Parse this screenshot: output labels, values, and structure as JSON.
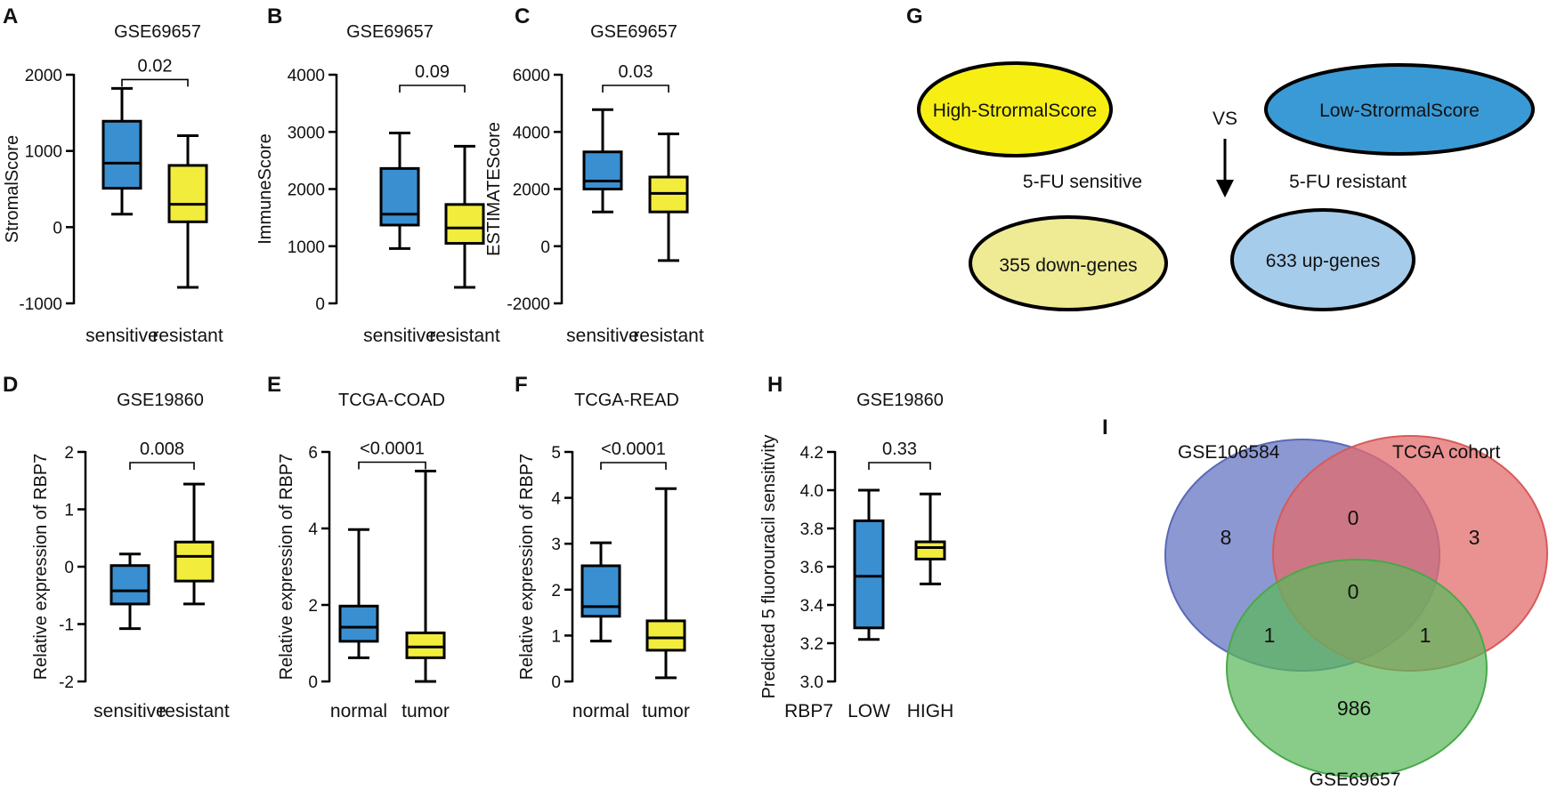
{
  "colors": {
    "sensitive_blue": "#3a8fd1",
    "resistant_yellow": "#f2ec3c",
    "high_yellow": "#f7ef14",
    "low_blue": "#3a9ad6",
    "down_light": "#efeb95",
    "up_light": "#a6ccec",
    "venn_blue": "#6676c2",
    "venn_red": "#e36c6c",
    "venn_green": "#5cb85c"
  },
  "chart_data": [
    {
      "panel": "A",
      "type": "box",
      "title": "GSE69657",
      "ylabel": "StromalScore",
      "ylim": [
        -1000,
        2000
      ],
      "yticks": [
        -1000,
        0,
        1000,
        2000
      ],
      "ytick_labels": [
        "-1000",
        "0",
        "1000",
        "2000"
      ],
      "categories": [
        "sensitive",
        "resistant"
      ],
      "boxes": [
        {
          "min": 170,
          "q1": 510,
          "median": 840,
          "q3": 1390,
          "max": 1820,
          "color": "#3a8fd1"
        },
        {
          "min": -790,
          "q1": 70,
          "median": 300,
          "q3": 810,
          "max": 1200,
          "color": "#f2ec3c"
        }
      ],
      "pvalue": "0.02"
    },
    {
      "panel": "B",
      "type": "box",
      "title": "GSE69657",
      "ylabel": "ImmuneScore",
      "ylim": [
        0,
        4000
      ],
      "yticks": [
        0,
        1000,
        2000,
        3000,
        4000
      ],
      "ytick_labels": [
        "0",
        "1000",
        "2000",
        "3000",
        "4000"
      ],
      "categories": [
        "sensitive",
        "resistant"
      ],
      "boxes": [
        {
          "min": 960,
          "q1": 1370,
          "median": 1560,
          "q3": 2360,
          "max": 2980,
          "color": "#3a8fd1"
        },
        {
          "min": 280,
          "q1": 1050,
          "median": 1320,
          "q3": 1730,
          "max": 2750,
          "color": "#f2ec3c"
        }
      ],
      "pvalue": "0.09"
    },
    {
      "panel": "C",
      "type": "box",
      "title": "GSE69657",
      "ylabel": "ESTIMATEScore",
      "ylim": [
        -2000,
        6000
      ],
      "yticks": [
        -2000,
        0,
        2000,
        4000,
        6000
      ],
      "ytick_labels": [
        "-2000",
        "0",
        "2000",
        "4000",
        "6000"
      ],
      "categories": [
        "sensitive",
        "resistant"
      ],
      "boxes": [
        {
          "min": 1200,
          "q1": 2000,
          "median": 2280,
          "q3": 3300,
          "max": 4780,
          "color": "#3a8fd1"
        },
        {
          "min": -500,
          "q1": 1200,
          "median": 1850,
          "q3": 2420,
          "max": 3930,
          "color": "#f2ec3c"
        }
      ],
      "pvalue": "0.03"
    },
    {
      "panel": "D",
      "type": "box",
      "title": "GSE19860",
      "ylabel": "Relative expression of RBP7",
      "ylim": [
        -2,
        2
      ],
      "yticks": [
        -2,
        -1,
        0,
        1,
        2
      ],
      "ytick_labels": [
        "-2",
        "-1",
        "0",
        "1",
        "2"
      ],
      "categories": [
        "sensitive",
        "resistant"
      ],
      "boxes": [
        {
          "min": -1.08,
          "q1": -0.65,
          "median": -0.42,
          "q3": 0.02,
          "max": 0.22,
          "color": "#3a8fd1"
        },
        {
          "min": -0.65,
          "q1": -0.25,
          "median": 0.18,
          "q3": 0.43,
          "max": 1.44,
          "color": "#f2ec3c"
        }
      ],
      "pvalue": "0.008"
    },
    {
      "panel": "E",
      "type": "box",
      "title": "TCGA-COAD",
      "ylabel": "Relative expression of RBP7",
      "ylim": [
        0,
        6
      ],
      "yticks": [
        0,
        2,
        4,
        6
      ],
      "ytick_labels": [
        "0",
        "2",
        "4",
        "6"
      ],
      "categories": [
        "normal",
        "tumor"
      ],
      "boxes": [
        {
          "min": 0.62,
          "q1": 1.05,
          "median": 1.42,
          "q3": 1.97,
          "max": 3.97,
          "color": "#3a8fd1"
        },
        {
          "min": 0.0,
          "q1": 0.62,
          "median": 0.9,
          "q3": 1.27,
          "max": 5.5,
          "color": "#f2ec3c"
        }
      ],
      "pvalue": "<0.0001"
    },
    {
      "panel": "F",
      "type": "box",
      "title": "TCGA-READ",
      "ylabel": "Relative expression of RBP7",
      "ylim": [
        0,
        5
      ],
      "yticks": [
        0,
        1,
        2,
        3,
        4,
        5
      ],
      "ytick_labels": [
        "0",
        "1",
        "2",
        "3",
        "4",
        "5"
      ],
      "categories": [
        "normal",
        "tumor"
      ],
      "boxes": [
        {
          "min": 0.88,
          "q1": 1.42,
          "median": 1.63,
          "q3": 2.52,
          "max": 3.02,
          "color": "#3a8fd1"
        },
        {
          "min": 0.08,
          "q1": 0.68,
          "median": 0.95,
          "q3": 1.32,
          "max": 4.2,
          "color": "#f2ec3c"
        }
      ],
      "pvalue": "<0.0001"
    },
    {
      "panel": "H",
      "type": "box",
      "title": "GSE19860",
      "ylabel": "Predicted 5 fluorouracil sensitivity",
      "ylim": [
        3.0,
        4.2
      ],
      "yticks": [
        3.0,
        3.2,
        3.4,
        3.6,
        3.8,
        4.0,
        4.2
      ],
      "ytick_labels": [
        "3.0",
        "3.2",
        "3.4",
        "3.6",
        "3.8",
        "4.0",
        "4.2"
      ],
      "categories": [
        "LOW",
        "HIGH"
      ],
      "group_label": "RBP7",
      "boxes": [
        {
          "min": 3.22,
          "q1": 3.28,
          "median": 3.55,
          "q3": 3.84,
          "max": 4.0,
          "color": "#3a8fd1"
        },
        {
          "min": 3.51,
          "q1": 3.64,
          "median": 3.7,
          "q3": 3.73,
          "max": 3.98,
          "color": "#f2ec3c"
        }
      ],
      "pvalue": "0.33"
    }
  ],
  "panel_g": {
    "letter": "G",
    "high": "High-StrormalScore",
    "vs": "VS",
    "low": "Low-StrormalScore",
    "sensitive": "5-FU sensitive",
    "resistant": "5-FU resistant",
    "down": "355 down-genes",
    "up": "633 up-genes"
  },
  "panel_i": {
    "letter": "I",
    "sets": [
      "GSE106584",
      "TCGA cohort",
      "GSE69657"
    ],
    "counts": {
      "gse106584_only": "8",
      "gse106584_tcga": "0",
      "tcga_only": "3",
      "all_three": "0",
      "gse106584_gse69657": "1",
      "tcga_gse69657": "1",
      "gse69657_only": "986"
    }
  }
}
